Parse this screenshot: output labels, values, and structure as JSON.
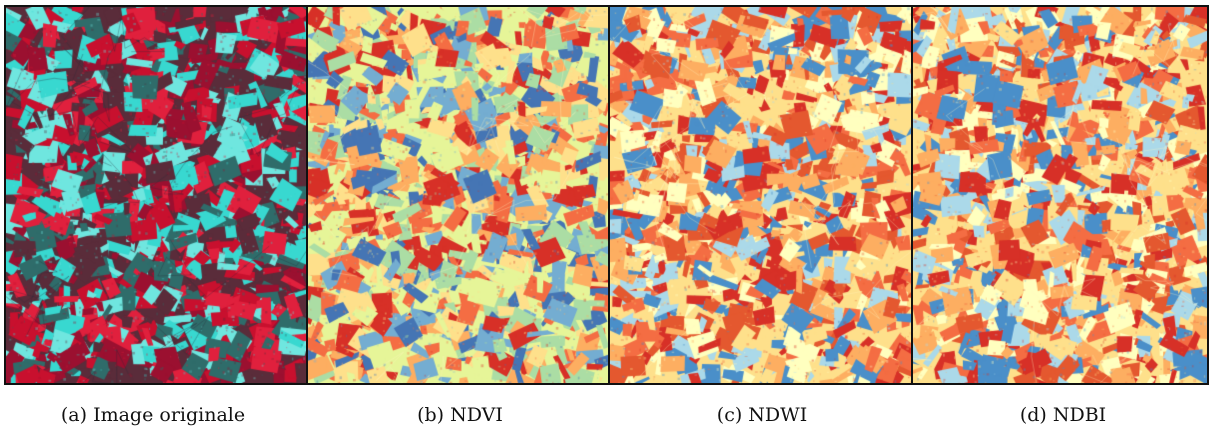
{
  "figure": {
    "panels": [
      {
        "id": "a",
        "caption": "(a) Image originale",
        "palette": "false-color"
      },
      {
        "id": "b",
        "caption": "(b) NDVI",
        "palette": "spectral"
      },
      {
        "id": "c",
        "caption": "(c) NDWI",
        "palette": "spectral-warm"
      },
      {
        "id": "d",
        "caption": "(d) NDBI",
        "palette": "spectral-warm"
      }
    ],
    "colors": {
      "frame": "#111111",
      "false_color": [
        "#c8102e",
        "#9b1030",
        "#e0203d",
        "#5a2c3a",
        "#38d8d0",
        "#6fe6df",
        "#2f6c6a"
      ],
      "spectral": [
        "#d73027",
        "#f46d43",
        "#fdae61",
        "#fee08b",
        "#e6f598",
        "#abdda4",
        "#74add1",
        "#4575b4"
      ],
      "spectral_warm": [
        "#d73027",
        "#e4582f",
        "#f46d43",
        "#fdae61",
        "#fee08b",
        "#ffffbf",
        "#abd9e9",
        "#4a8fc9"
      ]
    }
  }
}
